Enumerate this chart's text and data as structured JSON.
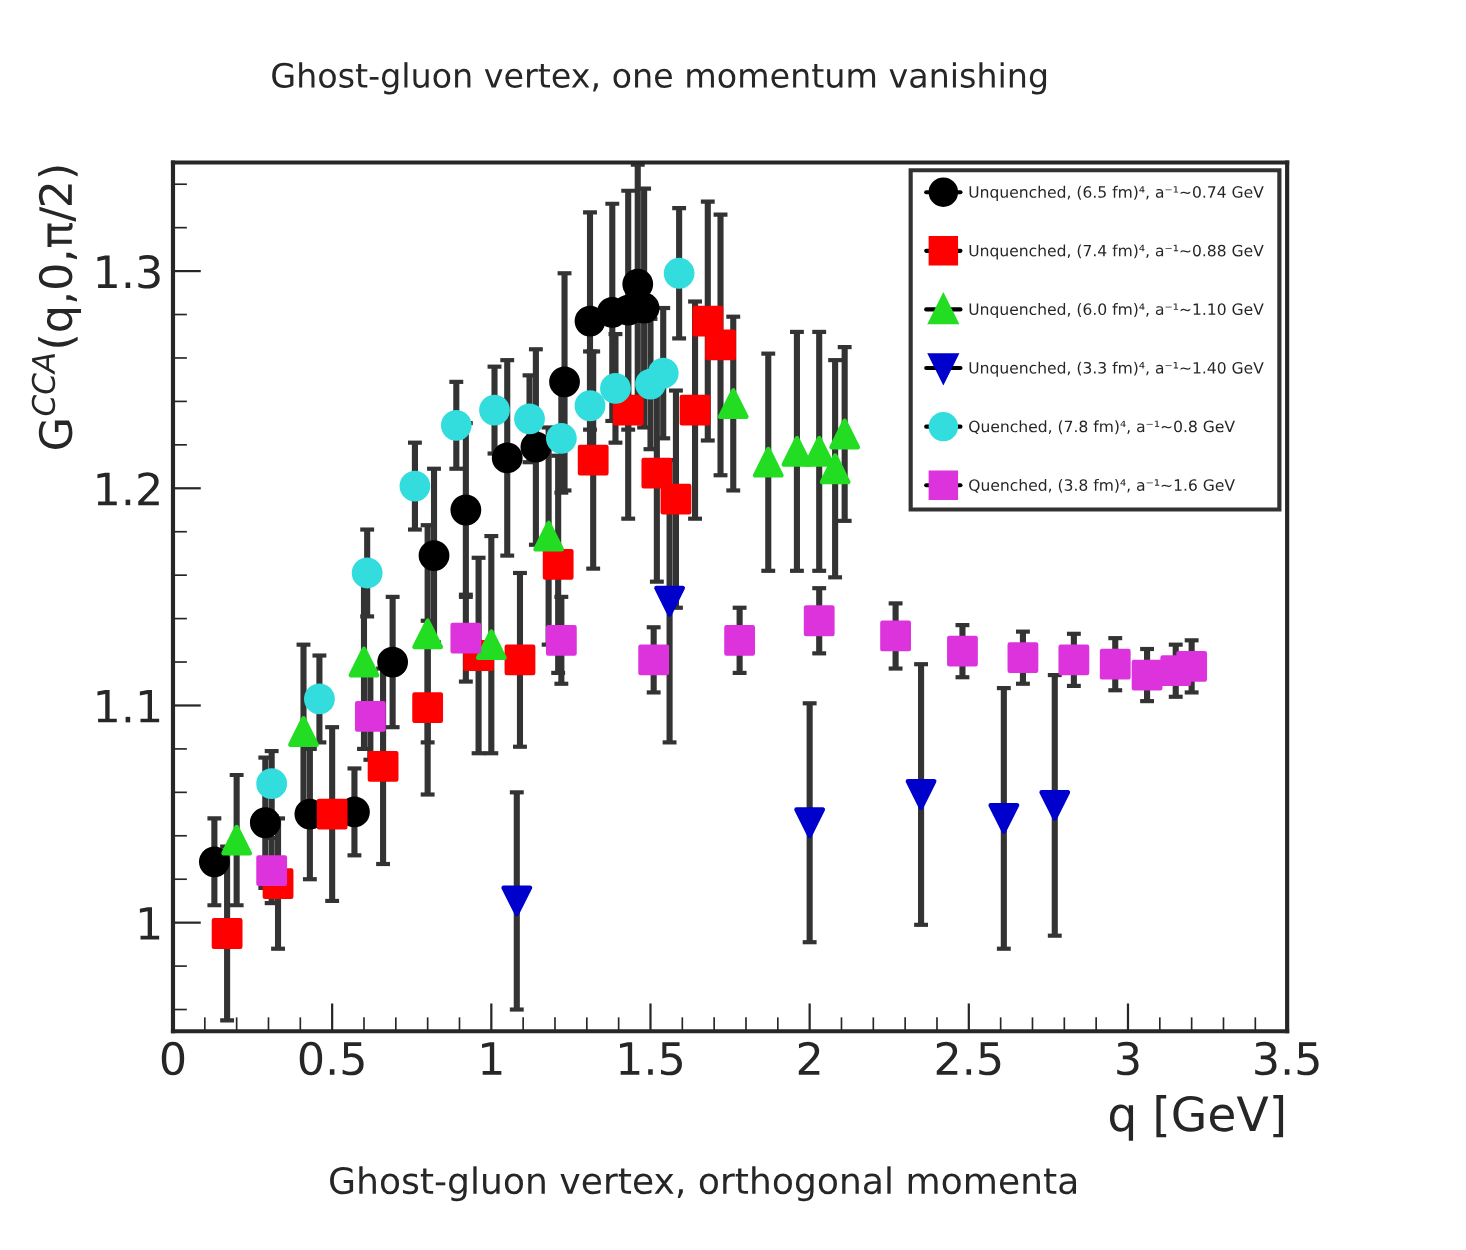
{
  "chart_data": {
    "type": "scatter",
    "title": "Ghost-gluon vertex, one momentum vanishing",
    "xlabel": "q [GeV]",
    "ylabel": "G$^{CCA}$(q,0,π/2)",
    "annotations": [
      "Ghost-gluon vertex, orthogonal momenta"
    ],
    "xlim": [
      0,
      3.5
    ],
    "xticks": [
      0,
      0.5,
      1,
      1.5,
      2,
      2.5,
      3,
      {
        "value": 3.5,
        "label": "3.5"
      }
    ],
    "ylim": [
      0.95,
      1.35
    ],
    "yticks": [
      1,
      1.1,
      1.2,
      1.3
    ],
    "grid": false,
    "legend": "top right",
    "series": [
      {
        "name": "Unquenched, (6.5 fm)⁴, a⁻¹~0.74 GeV",
        "color": "#000000",
        "marker": "circle",
        "x": [
          0.13,
          0.29,
          0.43,
          0.57,
          0.69,
          0.82,
          0.92,
          1.05,
          1.14,
          1.23,
          1.31,
          1.38,
          1.43,
          1.46,
          1.48
        ],
        "values": [
          1.028,
          1.046,
          1.05,
          1.051,
          1.12,
          1.169,
          1.19,
          1.214,
          1.219,
          1.249,
          1.277,
          1.281,
          1.282,
          1.294,
          1.283
        ],
        "errors": [
          0.02,
          0.03,
          0.03,
          0.02,
          0.03,
          0.04,
          0.04,
          0.045,
          0.045,
          0.05,
          0.05,
          0.05,
          0.055,
          0.055,
          0.055
        ]
      },
      {
        "name": "Unquenched, (7.4 fm)⁴, a⁻¹~0.88 GeV",
        "color": "#ff0000",
        "marker": "square",
        "x": [
          0.17,
          0.33,
          0.5,
          0.66,
          0.8,
          0.96,
          1.09,
          1.21,
          1.32,
          1.43,
          1.52,
          1.58,
          1.64,
          1.68,
          1.72
        ],
        "values": [
          0.995,
          1.018,
          1.05,
          1.072,
          1.099,
          1.123,
          1.121,
          1.165,
          1.213,
          1.236,
          1.207,
          1.195,
          1.236,
          1.277,
          1.266
        ],
        "errors": [
          0.04,
          0.03,
          0.04,
          0.045,
          0.04,
          0.045,
          0.04,
          0.05,
          0.05,
          0.05,
          0.05,
          0.05,
          0.05,
          0.055,
          0.06
        ]
      },
      {
        "name": "Unquenched, (6.0 fm)⁴, a⁻¹~1.10 GeV",
        "color": "#22dd22",
        "marker": "triangle",
        "x": [
          0.2,
          0.41,
          0.6,
          0.8,
          1.0,
          1.18,
          1.76,
          1.87,
          1.96,
          2.03,
          2.08,
          2.11
        ],
        "values": [
          1.038,
          1.088,
          1.12,
          1.133,
          1.128,
          1.178,
          1.239,
          1.212,
          1.217,
          1.217,
          1.209,
          1.225
        ],
        "errors": [
          0.03,
          0.04,
          0.04,
          0.05,
          0.05,
          0.05,
          0.04,
          0.05,
          0.055,
          0.055,
          0.05,
          0.04
        ]
      },
      {
        "name": "Unquenched, (3.3 fm)⁴, a⁻¹~1.40 GeV",
        "color": "#0000cc",
        "marker": "triangle_down",
        "x": [
          1.08,
          1.56,
          2.0,
          2.35,
          2.61,
          2.77
        ],
        "values": [
          1.01,
          1.148,
          1.046,
          1.059,
          1.048,
          1.054
        ],
        "errors": [
          0.05,
          0.065,
          0.055,
          0.06,
          0.06,
          0.06
        ]
      },
      {
        "name": "Quenched, (7.8 fm)⁴, a⁻¹~0.8 GeV",
        "color": "#33dddd",
        "marker": "circle",
        "x": [
          0.31,
          0.46,
          0.61,
          0.76,
          0.89,
          1.01,
          1.12,
          1.22,
          1.31,
          1.39,
          1.5,
          1.54,
          1.59
        ],
        "values": [
          1.064,
          1.103,
          1.161,
          1.201,
          1.229,
          1.236,
          1.232,
          1.223,
          1.238,
          1.246,
          1.248,
          1.253,
          1.299
        ],
        "errors": [
          0.015,
          0.02,
          0.02,
          0.02,
          0.02,
          0.02,
          0.02,
          0.025,
          0.025,
          0.025,
          0.03,
          0.03,
          0.03
        ]
      },
      {
        "name": "Quenched, (3.8 fm)⁴, a⁻¹~1.6 GeV",
        "color": "#dd33dd",
        "marker": "square",
        "x": [
          0.31,
          0.62,
          0.92,
          1.22,
          1.51,
          1.78,
          2.03,
          2.27,
          2.48,
          2.67,
          2.83,
          2.96,
          3.06,
          3.15,
          3.2
        ],
        "values": [
          1.024,
          1.095,
          1.131,
          1.13,
          1.121,
          1.13,
          1.139,
          1.132,
          1.125,
          1.122,
          1.121,
          1.119,
          1.114,
          1.116,
          1.118
        ],
        "errors": [
          0.015,
          0.02,
          0.02,
          0.02,
          0.015,
          0.015,
          0.015,
          0.015,
          0.012,
          0.012,
          0.012,
          0.012,
          0.012,
          0.012,
          0.012
        ]
      }
    ]
  }
}
